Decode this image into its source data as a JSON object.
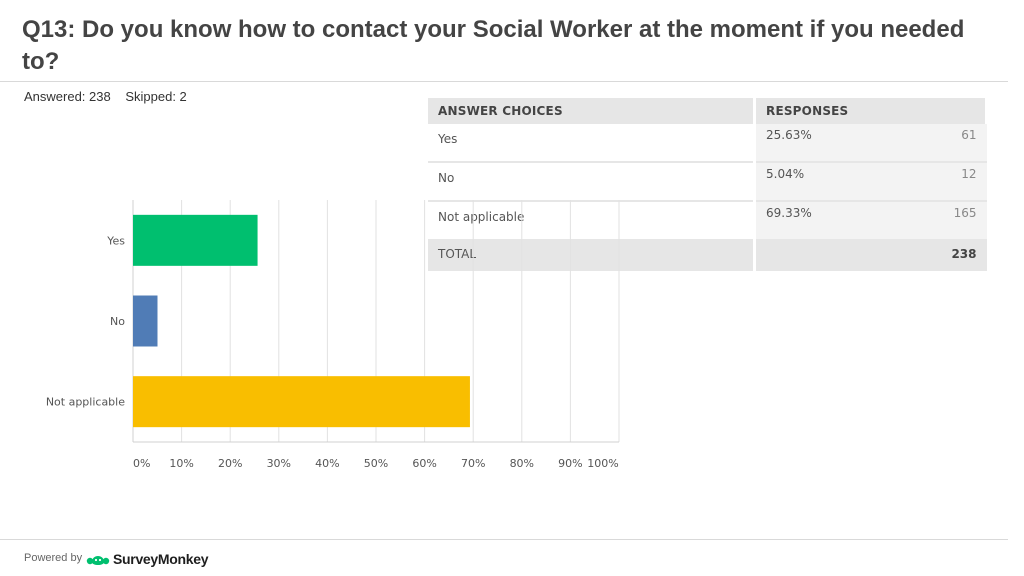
{
  "header": {
    "title": "Q13: Do you know how to contact your Social Worker at the moment if you needed to?",
    "answered": "Answered: 238",
    "skipped": "Skipped: 2"
  },
  "table": {
    "headers": [
      "ANSWER CHOICES",
      "RESPONSES"
    ],
    "rows": [
      {
        "choice": "Yes",
        "percent": "25.63%",
        "count": "61"
      },
      {
        "choice": "No",
        "percent": "5.04%",
        "count": "12"
      },
      {
        "choice": "Not applicable",
        "percent": "69.33%",
        "count": "165"
      }
    ],
    "total_label": "TOTAL",
    "total_count": "238"
  },
  "chart_data": {
    "type": "bar",
    "orientation": "horizontal",
    "categories": [
      "Yes",
      "No",
      "Not applicable"
    ],
    "values": [
      25.63,
      5.04,
      69.33
    ],
    "colors": [
      "#00bf6f",
      "#507cb6",
      "#f9be00"
    ],
    "xlim": [
      0,
      100
    ],
    "x_ticks": [
      0,
      10,
      20,
      30,
      40,
      50,
      60,
      70,
      80,
      90,
      100
    ],
    "x_tick_labels": [
      "0%",
      "10%",
      "20%",
      "30%",
      "40%",
      "50%",
      "60%",
      "70%",
      "80%",
      "90%",
      "100%"
    ],
    "grid": true
  },
  "footer": {
    "powered_by": "Powered by",
    "brand": "SurveyMonkey",
    "brand_color": "#00bf6f"
  }
}
